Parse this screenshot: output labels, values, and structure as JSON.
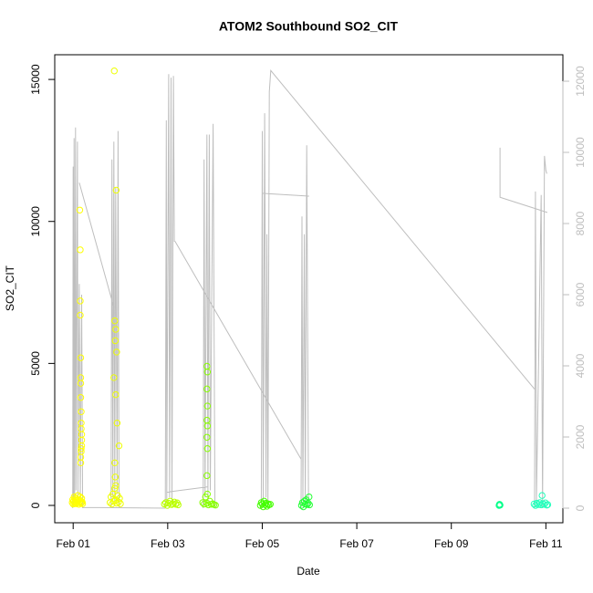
{
  "chart_data": {
    "type": "scatter",
    "title": "ATOM2 Southbound SO2_CIT",
    "xlabel": "Date",
    "ylabel": "SO2_CIT",
    "xlim": [
      0.61,
      11.36
    ],
    "ylim": [
      -610,
      15870
    ],
    "y2lim": [
      -410,
      12744
    ],
    "xticks": [
      {
        "value": 1,
        "label": "Feb 01"
      },
      {
        "value": 3,
        "label": "Feb 03"
      },
      {
        "value": 5,
        "label": "Feb 05"
      },
      {
        "value": 7,
        "label": "Feb 07"
      },
      {
        "value": 9,
        "label": "Feb 09"
      },
      {
        "value": 11,
        "label": "Feb 11"
      }
    ],
    "yticks": [
      0,
      5000,
      10000,
      15000
    ],
    "y2ticks": [
      0,
      2000,
      4000,
      6000,
      8000,
      10000,
      12000
    ],
    "y2color": "#bebebe",
    "series": [
      {
        "type": "scatter",
        "color": "#ffff00",
        "x": [
          0.98,
          0.99,
          1.0,
          1.01,
          1.02,
          1.03,
          1.04,
          1.05,
          1.06,
          1.07,
          1.08,
          1.09,
          1.1,
          1.11,
          1.12,
          1.13,
          1.14,
          1.15,
          1.16,
          1.17,
          1.18,
          1.19,
          1.2,
          1.14,
          1.15,
          1.15,
          1.15,
          1.16,
          1.16,
          1.16,
          1.16,
          1.17,
          1.17,
          1.17,
          1.18,
          1.18,
          1.18,
          1.17,
          1.17,
          1.16,
          1.16
        ],
        "values": [
          100,
          200,
          50,
          150,
          300,
          80,
          120,
          250,
          60,
          180,
          90,
          200,
          350,
          100,
          40,
          200,
          150,
          300,
          80,
          100,
          250,
          120,
          60,
          10400,
          9000,
          7200,
          6700,
          5200,
          4500,
          4300,
          3800,
          3300,
          2900,
          2700,
          2500,
          2300,
          2100,
          2000,
          1900,
          1700,
          1500
        ]
      },
      {
        "type": "scatter",
        "color": "#eeff00",
        "x": [
          1.78,
          1.8,
          1.82,
          1.84,
          1.86,
          1.88,
          1.9,
          1.92,
          1.94,
          1.96,
          1.98,
          2.0,
          1.87,
          1.91,
          1.88,
          1.9,
          1.89,
          1.92,
          1.86,
          1.9,
          1.93,
          1.97,
          1.88,
          1.89,
          1.9
        ],
        "values": [
          100,
          300,
          50,
          400,
          150,
          600,
          200,
          80,
          350,
          120,
          250,
          60,
          15300,
          11100,
          6500,
          6200,
          5800,
          5400,
          4500,
          3900,
          2900,
          2100,
          1500,
          1000,
          700
        ]
      },
      {
        "type": "scatter",
        "color": "#bbff00",
        "x": [
          2.93,
          2.96,
          2.99,
          3.02,
          3.05,
          3.08,
          3.11,
          3.14,
          3.17,
          3.2,
          3.22
        ],
        "values": [
          50,
          100,
          0,
          80,
          150,
          30,
          60,
          120,
          40,
          90,
          20
        ]
      },
      {
        "type": "scatter",
        "color": "#88ff00",
        "x": [
          3.74,
          3.77,
          3.8,
          3.83,
          3.86,
          3.89,
          3.92,
          3.95,
          3.98,
          4.01,
          3.83,
          3.84,
          3.83,
          3.84,
          3.83,
          3.84,
          3.83,
          3.84,
          3.83,
          3.84
        ],
        "values": [
          100,
          50,
          300,
          80,
          20,
          150,
          40,
          60,
          30,
          10,
          4900,
          4700,
          4100,
          3500,
          3000,
          2800,
          2400,
          2000,
          1050,
          400
        ]
      },
      {
        "type": "scatter",
        "color": "#44ff00",
        "x": [
          4.96,
          4.98,
          5.0,
          5.02,
          5.04,
          5.06,
          5.08,
          5.1,
          5.12,
          5.14,
          5.17
        ],
        "values": [
          0,
          100,
          50,
          -50,
          150,
          30,
          80,
          -30,
          60,
          20,
          40
        ]
      },
      {
        "type": "scatter",
        "color": "#22ff33",
        "x": [
          5.83,
          5.85,
          5.87,
          5.89,
          5.91,
          5.93,
          5.95,
          5.97,
          6.0,
          5.99
        ],
        "values": [
          0,
          100,
          -50,
          150,
          50,
          200,
          30,
          80,
          20,
          300
        ]
      },
      {
        "type": "scatter",
        "color": "#00ff88",
        "x": [
          10.01,
          10.02,
          10.03
        ],
        "values": [
          0,
          40,
          10
        ]
      },
      {
        "type": "scatter",
        "color": "#22ffbb",
        "x": [
          10.75,
          10.78,
          10.81,
          10.84,
          10.87,
          10.9,
          10.93,
          10.96,
          10.99,
          11.02,
          11.04,
          10.92
        ],
        "values": [
          50,
          0,
          80,
          30,
          100,
          20,
          60,
          40,
          90,
          10,
          30,
          350
        ]
      },
      {
        "type": "line",
        "axis": "y2",
        "color": "#bebebe",
        "x": [
          0.99,
          1.0,
          1.01,
          1.02,
          1.03,
          1.05,
          1.06,
          1.09,
          1.1,
          1.13,
          1.15,
          1.18,
          1.2,
          null,
          1.13,
          1.87,
          null,
          1.8,
          1.82,
          1.84,
          1.86,
          1.88,
          1.9,
          1.93,
          1.95,
          1.97,
          null,
          1.2,
          2.95,
          null,
          2.95,
          2.97,
          2.98,
          3.02,
          3.04,
          3.07,
          3.09,
          3.12,
          3.14,
          3.16,
          5.82,
          null,
          2.97,
          3.85,
          null,
          3.75,
          3.77,
          3.79,
          3.83,
          3.85,
          3.88,
          3.9,
          3.96,
          4.0,
          null,
          4.98,
          5.0,
          5.02,
          5.05,
          5.08,
          5.1,
          5.12,
          5.15,
          5.18,
          10.77,
          null,
          4.99,
          5.99,
          null,
          5.82,
          5.84,
          5.86,
          5.89,
          5.91,
          5.94,
          5.98,
          null,
          10.03,
          10.03,
          11.03,
          null,
          10.76,
          10.78,
          10.8,
          10.9,
          10.93,
          10.97,
          11.0,
          11.02
        ],
        "values": [
          0,
          9600,
          100,
          10400,
          200,
          10700,
          500,
          10300,
          300,
          6300,
          200,
          6000,
          0,
          null,
          9150,
          5600,
          null,
          0,
          9800,
          300,
          10300,
          200,
          9000,
          400,
          10600,
          0,
          null,
          20,
          0,
          null,
          0,
          10900,
          200,
          12200,
          300,
          12100,
          100,
          12150,
          7500,
          7490,
          1380,
          null,
          450,
          600,
          null,
          0,
          9800,
          300,
          10500,
          200,
          10500,
          500,
          10800,
          0,
          null,
          0,
          10600,
          200,
          11100,
          300,
          7700,
          100,
          11700,
          12300,
          3330,
          null,
          8850,
          8770,
          null,
          0,
          8200,
          200,
          7700,
          100,
          10200,
          0,
          null,
          10130,
          8740,
          8310,
          null,
          0,
          8900,
          200,
          8800,
          0,
          9900,
          9500,
          9400
        ]
      }
    ]
  }
}
